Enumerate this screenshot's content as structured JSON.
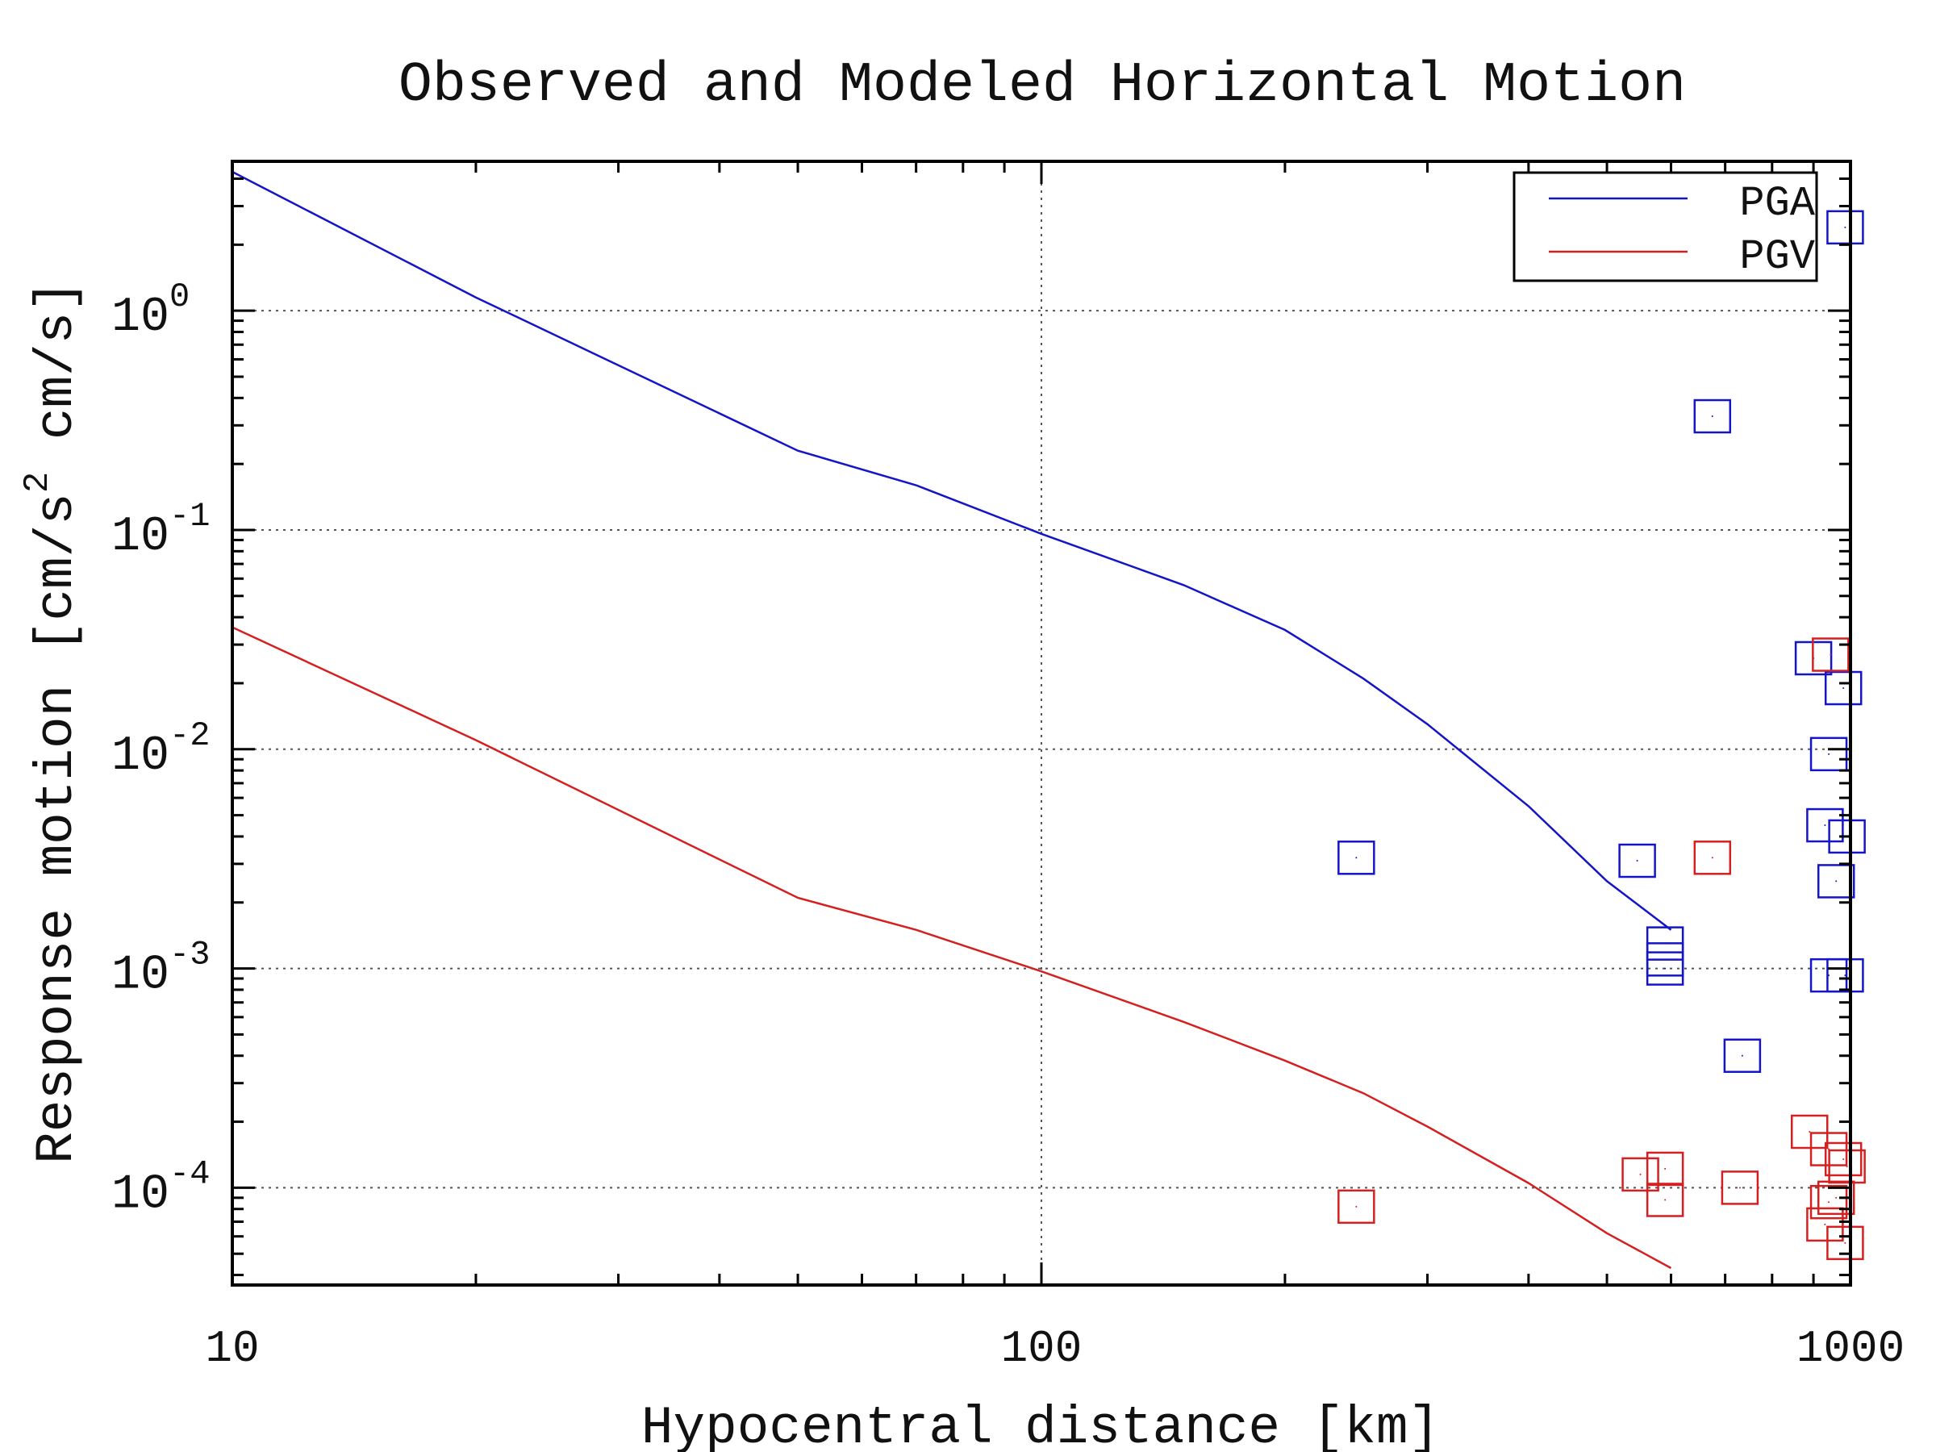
{
  "chart_data": {
    "type": "scatter",
    "title": "Observed and Modeled Horizontal Motion",
    "xlabel": "Hypocentral distance [km]",
    "ylabel": {
      "prefix": "Response motion [cm/s",
      "superscript": "2",
      "suffix": " cm/s]"
    },
    "x_scale": "log",
    "y_scale": "log",
    "xlim": [
      10,
      1000
    ],
    "ylim": [
      3.6e-05,
      4.8
    ],
    "grid": true,
    "legend_position": "top-right",
    "x_ticks": [
      {
        "value": 10,
        "label": "10"
      },
      {
        "value": 100,
        "label": "100"
      },
      {
        "value": 1000,
        "label": "1000"
      }
    ],
    "y_ticks": [
      {
        "value": 1,
        "base": "10",
        "exp": "0"
      },
      {
        "value": 0.1,
        "base": "10",
        "exp": "-1"
      },
      {
        "value": 0.01,
        "base": "10",
        "exp": "-2"
      },
      {
        "value": 0.001,
        "base": "10",
        "exp": "-3"
      },
      {
        "value": 0.0001,
        "base": "10",
        "exp": "-4"
      }
    ],
    "series": [
      {
        "name": "PGA",
        "color": "#1515c8",
        "curve": [
          {
            "x": 10,
            "y": 4.3
          },
          {
            "x": 20,
            "y": 1.15
          },
          {
            "x": 50,
            "y": 0.23
          },
          {
            "x": 70,
            "y": 0.16
          },
          {
            "x": 100,
            "y": 0.096
          },
          {
            "x": 150,
            "y": 0.056
          },
          {
            "x": 200,
            "y": 0.035
          },
          {
            "x": 250,
            "y": 0.021
          },
          {
            "x": 300,
            "y": 0.013
          },
          {
            "x": 400,
            "y": 0.0055
          },
          {
            "x": 500,
            "y": 0.0025
          },
          {
            "x": 600,
            "y": 0.0015
          }
        ],
        "observed": [
          {
            "x": 985,
            "y": 2.4
          },
          {
            "x": 675,
            "y": 0.33
          },
          {
            "x": 900,
            "y": 0.026
          },
          {
            "x": 980,
            "y": 0.019
          },
          {
            "x": 940,
            "y": 0.0095
          },
          {
            "x": 930,
            "y": 0.0045
          },
          {
            "x": 990,
            "y": 0.004
          },
          {
            "x": 245,
            "y": 0.0032
          },
          {
            "x": 545,
            "y": 0.0031
          },
          {
            "x": 960,
            "y": 0.0025
          },
          {
            "x": 590,
            "y": 0.0013
          },
          {
            "x": 590,
            "y": 0.0011
          },
          {
            "x": 590,
            "y": 0.001
          },
          {
            "x": 940,
            "y": 0.00093
          },
          {
            "x": 985,
            "y": 0.00093
          },
          {
            "x": 735,
            "y": 0.0004
          }
        ]
      },
      {
        "name": "PGV",
        "color": "#d42020",
        "curve": [
          {
            "x": 10,
            "y": 0.036
          },
          {
            "x": 20,
            "y": 0.011
          },
          {
            "x": 50,
            "y": 0.0021
          },
          {
            "x": 70,
            "y": 0.0015
          },
          {
            "x": 100,
            "y": 0.00097
          },
          {
            "x": 150,
            "y": 0.00057
          },
          {
            "x": 200,
            "y": 0.00038
          },
          {
            "x": 250,
            "y": 0.00027
          },
          {
            "x": 300,
            "y": 0.00019
          },
          {
            "x": 400,
            "y": 0.000105
          },
          {
            "x": 500,
            "y": 6.2e-05
          },
          {
            "x": 600,
            "y": 4.3e-05
          }
        ],
        "observed": [
          {
            "x": 945,
            "y": 0.027
          },
          {
            "x": 675,
            "y": 0.0032
          },
          {
            "x": 890,
            "y": 0.00018
          },
          {
            "x": 940,
            "y": 0.00015
          },
          {
            "x": 980,
            "y": 0.000135
          },
          {
            "x": 990,
            "y": 0.000125
          },
          {
            "x": 590,
            "y": 0.000122
          },
          {
            "x": 550,
            "y": 0.000115
          },
          {
            "x": 730,
            "y": 0.0001
          },
          {
            "x": 960,
            "y": 9e-05
          },
          {
            "x": 590,
            "y": 8.8e-05
          },
          {
            "x": 940,
            "y": 8.6e-05
          },
          {
            "x": 245,
            "y": 8.2e-05
          },
          {
            "x": 930,
            "y": 6.8e-05
          },
          {
            "x": 985,
            "y": 5.6e-05
          }
        ]
      }
    ]
  }
}
